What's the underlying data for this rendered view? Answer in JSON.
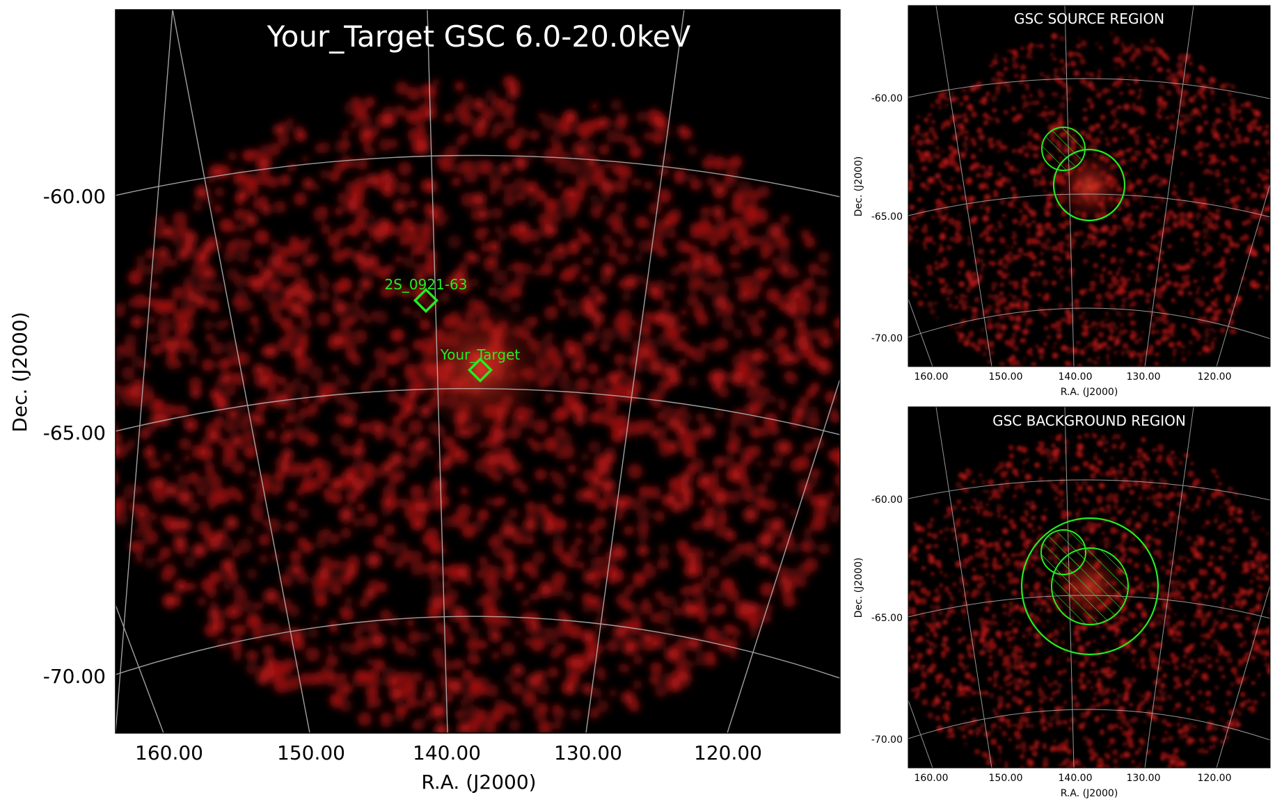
{
  "main": {
    "title": "Your_Target GSC 6.0-20.0keV",
    "xlabel": "R.A. (J2000)",
    "ylabel": "Dec. (J2000)",
    "xticks": [
      "160.00",
      "150.00",
      "140.00",
      "130.00",
      "120.00"
    ],
    "yticks": [
      "-60.00",
      "-65.00",
      "-70.00"
    ],
    "markers": [
      {
        "label": "2S_0921-63",
        "color": "#22ee22"
      },
      {
        "label": "Your_Target",
        "color": "#22ee22"
      }
    ]
  },
  "source_panel": {
    "title": "GSC SOURCE REGION",
    "xlabel": "R.A. (J2000)",
    "ylabel": "Dec. (J2000)",
    "xticks": [
      "160.00",
      "150.00",
      "140.00",
      "130.00",
      "120.00"
    ],
    "yticks": [
      "-60.00",
      "-65.00",
      "-70.00"
    ]
  },
  "background_panel": {
    "title": "GSC BACKGROUND REGION",
    "xlabel": "R.A. (J2000)",
    "ylabel": "Dec. (J2000)",
    "xticks": [
      "160.00",
      "150.00",
      "140.00",
      "130.00",
      "120.00"
    ],
    "yticks": [
      "-60.00",
      "-65.00",
      "-70.00"
    ]
  },
  "colors": {
    "sky_background": "#000000",
    "emission": "#b01414",
    "region": "#22ee22",
    "grid": "#bdbdbd"
  }
}
